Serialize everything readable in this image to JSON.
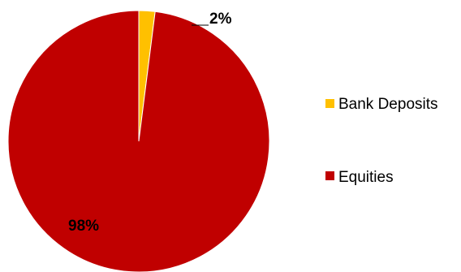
{
  "chart_data": {
    "type": "pie",
    "categories": [
      "Bank Deposits",
      "Equities"
    ],
    "values": [
      2,
      98
    ],
    "value_unit": "%",
    "data_labels": [
      "2%",
      "98%"
    ],
    "colors": {
      "Bank Deposits": "#FFC000",
      "Equities": "#C00000"
    },
    "start_angle_deg": 0,
    "direction": "clockwise",
    "legend_position": "right",
    "title": ""
  }
}
